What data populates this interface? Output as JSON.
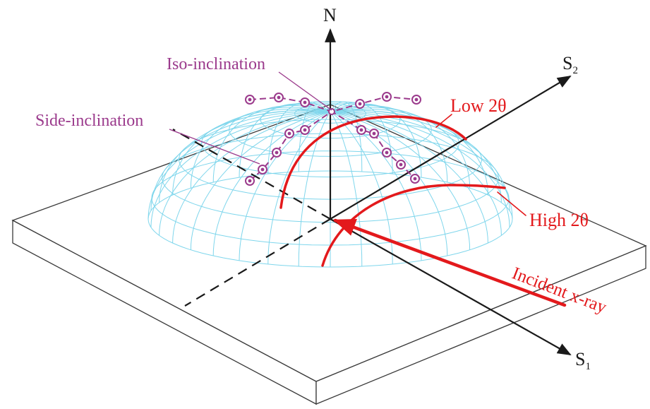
{
  "labels": {
    "axis_n": "N",
    "axis_s1_letter": "S",
    "axis_s1_sub": "1",
    "axis_s2_letter": "S",
    "axis_s2_sub": "2",
    "iso_inclination": "Iso-inclination",
    "side_inclination": "Side-inclination",
    "low_2theta": "Low 2θ",
    "high_2theta": "High 2θ",
    "incident_xray": "Incident x-ray"
  },
  "colors": {
    "mesh": "#7fd6ec",
    "axes": "#1a1a1a",
    "purple": "#9b3a8c",
    "red": "#e3191c",
    "plate_edge": "#3a3a3a"
  }
}
